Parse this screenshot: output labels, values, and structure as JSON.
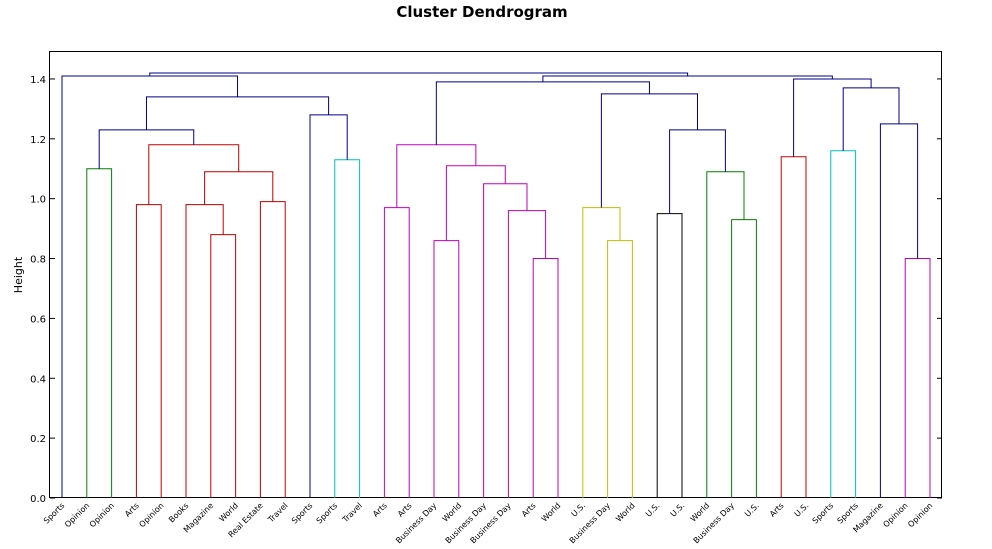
{
  "chart_data": {
    "type": "dendrogram",
    "title": "Cluster Dendrogram",
    "xlabel": "",
    "ylabel": "Height",
    "ylim": [
      0,
      1.4
    ],
    "yticks": [
      "0.0",
      "0.2",
      "0.4",
      "0.6",
      "0.8",
      "1.0",
      "1.2",
      "1.4"
    ],
    "yticks_values": [
      0,
      0.2,
      0.4,
      0.6,
      0.8,
      1.0,
      1.2,
      1.4
    ],
    "grid": false,
    "leaves": [
      "Sports",
      "Opinion",
      "Opinion",
      "Arts",
      "Opinion",
      "Books",
      "Magazine",
      "World",
      "Real Estate",
      "Travel",
      "Sports",
      "Sports",
      "Travel",
      "Arts",
      "Arts",
      "Business Day",
      "World",
      "Business Day",
      "Business Day",
      "Arts",
      "World",
      "U.S.",
      "Business Day",
      "World",
      "U.S.",
      "U.S.",
      "World",
      "Business Day",
      "U.S.",
      "Arts",
      "U.S.",
      "Sports",
      "Sports",
      "Magazine",
      "Opinion",
      "Opinion"
    ],
    "colors": {
      "navy": "#00008b",
      "green": "#008000",
      "red": "#c00000",
      "cyan": "#00bfbf",
      "magenta": "#bf00bf",
      "olive": "#bfbf00",
      "black": "#000000"
    },
    "merges": [
      {
        "left": 1,
        "right": 2,
        "height": 1.1,
        "color": "green"
      },
      {
        "left": 6,
        "right": 7,
        "height": 0.88,
        "color": "red"
      },
      {
        "left": 5,
        "right": "m1",
        "height": 0.98,
        "color": "red"
      },
      {
        "left": 8,
        "right": 9,
        "height": 0.99,
        "color": "red"
      },
      {
        "left": "m2",
        "right": "m3",
        "height": 1.09,
        "color": "red"
      },
      {
        "left": 3,
        "right": 4,
        "height": 0.98,
        "color": "red"
      },
      {
        "left": "m5",
        "right": "m4",
        "height": 1.18,
        "color": "red"
      },
      {
        "left": "m0",
        "right": "m6",
        "height": 1.23,
        "color": "navy"
      },
      {
        "left": 11,
        "right": 12,
        "height": 1.13,
        "color": "cyan"
      },
      {
        "left": 10,
        "right": "m8",
        "height": 1.28,
        "color": "navy"
      },
      {
        "left": "m7",
        "right": "m9",
        "height": 1.34,
        "color": "navy"
      },
      {
        "left": 0,
        "right": "m10",
        "height": 1.41,
        "color": "navy"
      },
      {
        "left": 13,
        "right": 14,
        "height": 0.97,
        "color": "magenta"
      },
      {
        "left": 15,
        "right": 16,
        "height": 0.86,
        "color": "magenta"
      },
      {
        "left": 19,
        "right": 20,
        "height": 0.8,
        "color": "magenta"
      },
      {
        "left": 18,
        "right": "m14",
        "height": 0.96,
        "color": "magenta"
      },
      {
        "left": 17,
        "right": "m15",
        "height": 1.05,
        "color": "magenta"
      },
      {
        "left": "m13",
        "right": "m16",
        "height": 1.11,
        "color": "magenta"
      },
      {
        "left": "m12",
        "right": "m17",
        "height": 1.18,
        "color": "magenta"
      },
      {
        "left": 22,
        "right": 23,
        "height": 0.86,
        "color": "olive"
      },
      {
        "left": 21,
        "right": "m19",
        "height": 0.97,
        "color": "olive"
      },
      {
        "left": 24,
        "right": 25,
        "height": 0.95,
        "color": "black"
      },
      {
        "left": 27,
        "right": 28,
        "height": 0.93,
        "color": "green"
      },
      {
        "left": 26,
        "right": "m22",
        "height": 1.09,
        "color": "green"
      },
      {
        "left": "m21",
        "right": "m23",
        "height": 1.23,
        "color": "navy"
      },
      {
        "left": "m20",
        "right": "m24",
        "height": 1.35,
        "color": "navy"
      },
      {
        "left": "m18",
        "right": "m25",
        "height": 1.39,
        "color": "navy"
      },
      {
        "left": 29,
        "right": 30,
        "height": 1.14,
        "color": "red"
      },
      {
        "left": 31,
        "right": 32,
        "height": 1.16,
        "color": "cyan"
      },
      {
        "left": 34,
        "right": 35,
        "height": 0.8,
        "color": "magenta"
      },
      {
        "left": 33,
        "right": "m29",
        "height": 1.25,
        "color": "navy"
      },
      {
        "left": "m28",
        "right": "m30",
        "height": 1.37,
        "color": "navy"
      },
      {
        "left": "m27",
        "right": "m31",
        "height": 1.4,
        "color": "navy"
      },
      {
        "left": "m26",
        "right": "m32",
        "height": 1.41,
        "color": "navy"
      },
      {
        "left": "m11",
        "right": "m33",
        "height": 1.42,
        "color": "navy"
      }
    ]
  }
}
